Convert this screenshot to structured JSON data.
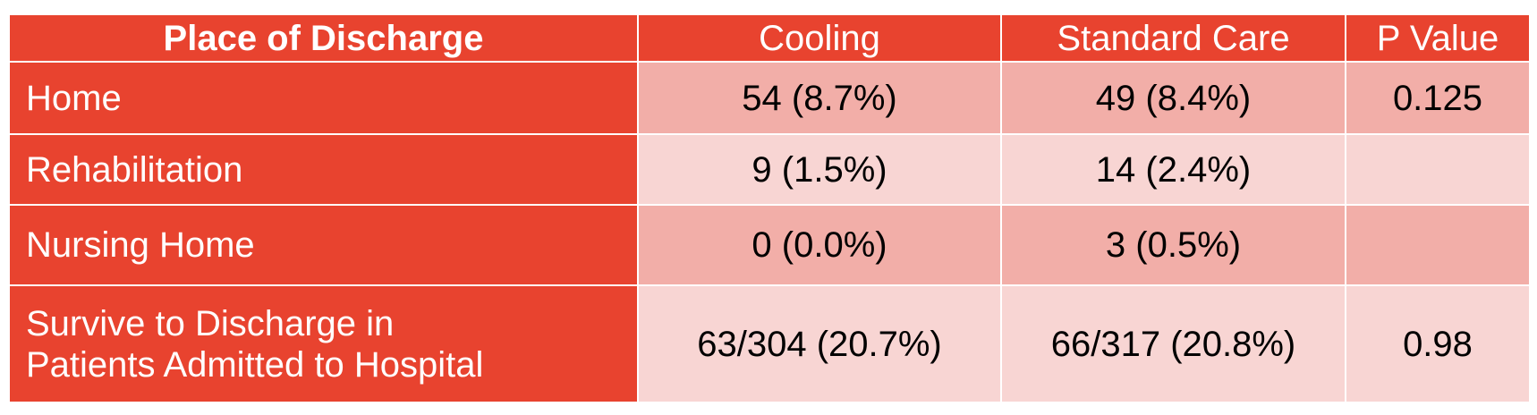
{
  "table": {
    "header": [
      "Place of Discharge",
      "Cooling",
      "Standard Care",
      "P Value"
    ],
    "rows": [
      {
        "label": "Home",
        "cells": [
          "54 (8.7%)",
          "49 (8.4%)",
          "0.125"
        ]
      },
      {
        "label": "Rehabilitation",
        "cells": [
          "9 (1.5%)",
          "14 (2.4%)"
        ]
      },
      {
        "label": "Nursing Home",
        "cells": [
          "0 (0.0%)",
          "3 (0.5%)"
        ]
      },
      {
        "label": "Survive to Discharge in\nPatients Admitted to Hospital",
        "cells": [
          "63/304 (20.7%)",
          "66/317 (20.8%)",
          "0.98"
        ]
      }
    ]
  }
}
